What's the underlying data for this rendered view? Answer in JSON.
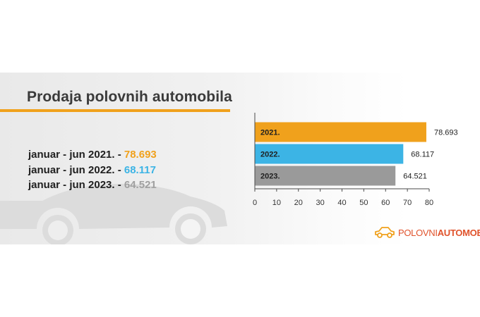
{
  "title": "Prodaja polovnih automobila",
  "stats": [
    {
      "prefix": "januar - jun 2021. - ",
      "value": "78.693",
      "color": "#f0a11c"
    },
    {
      "prefix": "januar - jun 2022. - ",
      "value": "68.117",
      "color": "#3cb4e5"
    },
    {
      "prefix": "januar - jun 2023. - ",
      "value": "64.521",
      "color": "#a0a0a0"
    }
  ],
  "logo": {
    "part1": "POLOVNI",
    "part2": "AUTOMOBILI",
    "icon": "car-icon",
    "color": "#e0532c"
  },
  "chart_data": {
    "type": "bar",
    "orientation": "horizontal",
    "categories": [
      "2021.",
      "2022.",
      "2023."
    ],
    "values": [
      78.693,
      68.117,
      64.521
    ],
    "data_labels": [
      "78.693",
      "68.117",
      "64.521"
    ],
    "colors": [
      "#f0a11c",
      "#3cb4e5",
      "#9a9a9a"
    ],
    "xlim": [
      0,
      80
    ],
    "xticks": [
      0,
      10,
      20,
      30,
      40,
      50,
      60,
      70,
      80
    ],
    "grid": false
  }
}
